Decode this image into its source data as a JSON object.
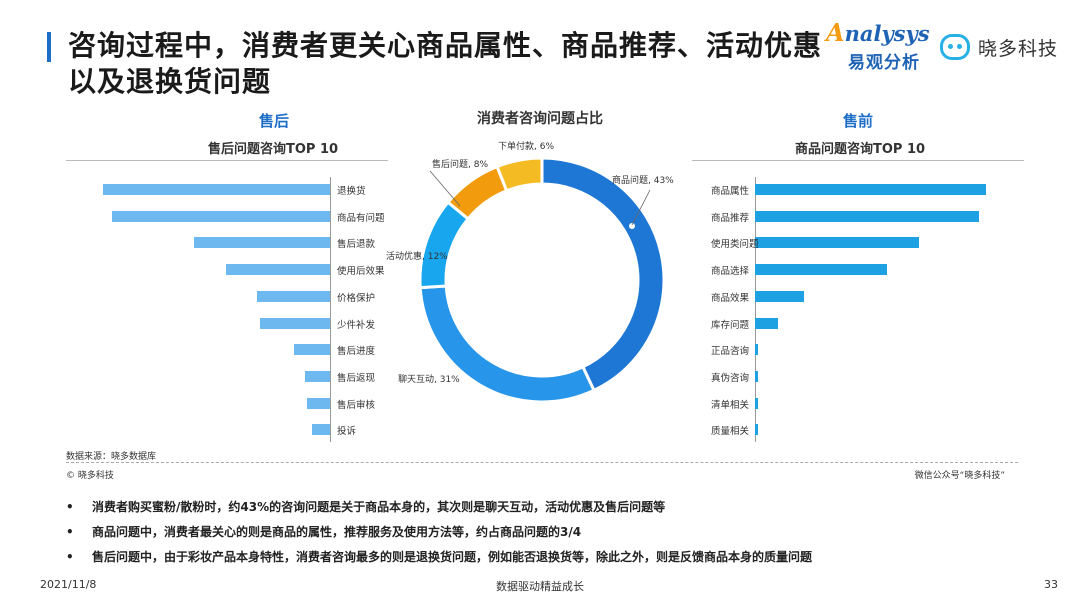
{
  "header": {
    "title": "咨询过程中，消费者更关心商品属性、商品推荐、活动优惠以及退换货问题",
    "logo_analysys_en": "nalysys",
    "logo_analysys_a": "A",
    "logo_analysys_cn": "易观分析",
    "logo_xiaoduo": "晓多科技"
  },
  "left": {
    "title": "售后",
    "subtitle": "售后问题咨询TOP 10"
  },
  "center": {
    "title": "消费者咨询问题占比"
  },
  "right": {
    "title": "售前",
    "subtitle": "商品问题咨询TOP 10"
  },
  "chart_data": [
    {
      "type": "bar",
      "orientation": "horizontal",
      "subtitle": "售后问题咨询TOP 10",
      "categories": [
        "退换货",
        "商品有问题",
        "售后退款",
        "使用后效果",
        "价格保护",
        "少件补发",
        "售后进度",
        "售后返现",
        "售后审核",
        "投诉"
      ],
      "values": [
        100,
        96,
        60,
        46,
        32,
        31,
        16,
        11,
        10,
        8
      ],
      "value_note": "relative bar length, no value labels shown",
      "bar_color": "#6db8ee"
    },
    {
      "type": "pie",
      "title": "消费者咨询问题占比",
      "donut": true,
      "categories": [
        "商品问题",
        "聊天互动",
        "活动优惠",
        "售后问题",
        "下单付款"
      ],
      "values": [
        43,
        31,
        12,
        8,
        6
      ],
      "labels": [
        "商品问题, 43%",
        "聊天互动, 31%",
        "活动优惠, 12%",
        "售后问题, 8%",
        "下单付款, 6%"
      ],
      "colors": [
        "#1e77d4",
        "#2795e9",
        "#18a6ee",
        "#f29b0c",
        "#f5bb22"
      ]
    },
    {
      "type": "bar",
      "orientation": "horizontal",
      "subtitle": "商品问题咨询TOP 10",
      "categories": [
        "商品属性",
        "商品推荐",
        "使用类问题",
        "商品选择",
        "商品效果",
        "库存问题",
        "正品咨询",
        "真伪咨询",
        "清单相关",
        "质量相关"
      ],
      "values": [
        100,
        97,
        71,
        57,
        21,
        10,
        1.5,
        1.5,
        1.5,
        1.5
      ],
      "value_note": "relative bar length, no value labels shown",
      "bar_color": "#1da1e2"
    }
  ],
  "footer_area": {
    "source": "数据来源：晓多数据库",
    "copyright": "© 晓多科技",
    "wechat": "微信公众号“晓多科技”"
  },
  "bullets": [
    "消费者购买蜜粉/散粉时，约43%的咨询问题是关于商品本身的，其次则是聊天互动，活动优惠及售后问题等",
    "商品问题中，消费者最关心的则是商品的属性，推荐服务及使用方法等，约占商品问题的3/4",
    "售后问题中，由于彩妆产品本身特性，消费者咨询最多的则是退换货问题，例如能否退换货等，除此之外，则是反馈商品本身的质量问题"
  ],
  "bullet_symbol": "•",
  "footer": {
    "date": "2021/11/8",
    "slogan": "数据驱动精益成长",
    "page": "33"
  }
}
